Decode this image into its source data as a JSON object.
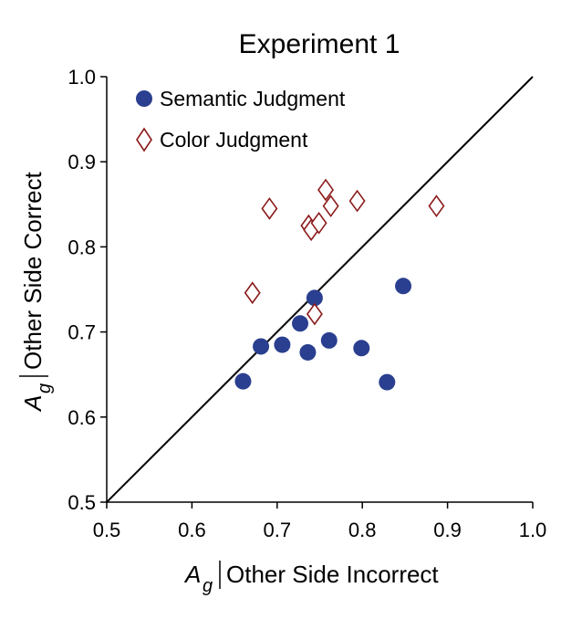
{
  "chart_data": {
    "type": "scatter",
    "title": "Experiment 1",
    "xlabel": {
      "symbol": "A",
      "subscript": "g",
      "text": "Other Side Incorrect"
    },
    "ylabel": {
      "symbol": "A",
      "subscript": "g",
      "text": "Other Side Correct"
    },
    "xlim": [
      0.5,
      1.0
    ],
    "ylim": [
      0.5,
      1.0
    ],
    "xticks": [
      "0.5",
      "0.6",
      "0.7",
      "0.8",
      "0.9",
      "1.0"
    ],
    "yticks": [
      "0.5",
      "0.6",
      "0.7",
      "0.8",
      "0.9",
      "1.0"
    ],
    "reference_line": {
      "from": [
        0.5,
        0.5
      ],
      "to": [
        1.0,
        1.0
      ]
    },
    "grid": false,
    "legend_position": "top-left",
    "series": [
      {
        "name": "Semantic Judgment",
        "marker": "filled-circle",
        "color": "#2a3f8f",
        "points": [
          [
            0.66,
            0.642
          ],
          [
            0.681,
            0.683
          ],
          [
            0.706,
            0.685
          ],
          [
            0.727,
            0.71
          ],
          [
            0.736,
            0.676
          ],
          [
            0.744,
            0.74
          ],
          [
            0.761,
            0.69
          ],
          [
            0.799,
            0.681
          ],
          [
            0.829,
            0.641
          ],
          [
            0.848,
            0.754
          ]
        ]
      },
      {
        "name": "Color Judgment",
        "marker": "open-diamond",
        "color": "#8b1a1a",
        "points": [
          [
            0.671,
            0.746
          ],
          [
            0.691,
            0.845
          ],
          [
            0.737,
            0.825
          ],
          [
            0.74,
            0.82
          ],
          [
            0.744,
            0.721
          ],
          [
            0.749,
            0.828
          ],
          [
            0.757,
            0.867
          ],
          [
            0.763,
            0.848
          ],
          [
            0.794,
            0.854
          ],
          [
            0.887,
            0.848
          ]
        ]
      }
    ]
  }
}
